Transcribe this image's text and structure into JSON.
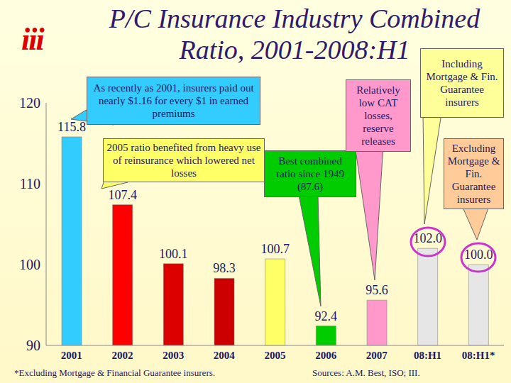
{
  "chart_data": {
    "type": "bar",
    "title": "P/C Insurance Industry Combined Ratio, 2001-2008:H1",
    "logo": "iii",
    "categories": [
      "2001",
      "2002",
      "2003",
      "2004",
      "2005",
      "2006",
      "2007",
      "08:H1",
      "08:H1*"
    ],
    "values": [
      115.8,
      107.4,
      100.1,
      98.3,
      100.7,
      92.4,
      95.6,
      102.0,
      100.0
    ],
    "value_labels": [
      "115.8",
      "107.4",
      "100.1",
      "98.3",
      "100.7",
      "92.4",
      "95.6",
      "102.0",
      "100.0"
    ],
    "colors": [
      "#33CCFF",
      "#FF0000",
      "#DD0000",
      "#CC0000",
      "#FFFF66",
      "#00CC00",
      "#FF99CC",
      "#E6E6E6",
      "#E6E6E6"
    ],
    "ylim": [
      90,
      120
    ],
    "yticks": [
      90,
      100,
      110,
      120
    ],
    "grid": false,
    "data_labels": true,
    "annotations": [
      {
        "text": "As recently as 2001, insurers paid out nearly $1.16 for every $1 in earned premiums",
        "color": "#33CCFF"
      },
      {
        "text": "2005 ratio benefited from heavy use of reinsurance which lowered net losses",
        "color": "#FFFF66"
      },
      {
        "text": "Best combined ratio since 1949 (87.6)",
        "color": "#00CC00"
      },
      {
        "text": "Relatively low CAT losses, reserve releases",
        "color": "#FF99CC"
      },
      {
        "text": "Including Mortgage & Fin. Guarantee insurers",
        "color": "#FFFF99"
      },
      {
        "text": "Excluding Mortgage & Fin. Guarantee insurers",
        "color": "#FFCC99"
      }
    ],
    "footnote": "*Excluding Mortgage & Financial Guarantee insurers.",
    "source": "Sources: A.M. Best, ISO; III."
  }
}
